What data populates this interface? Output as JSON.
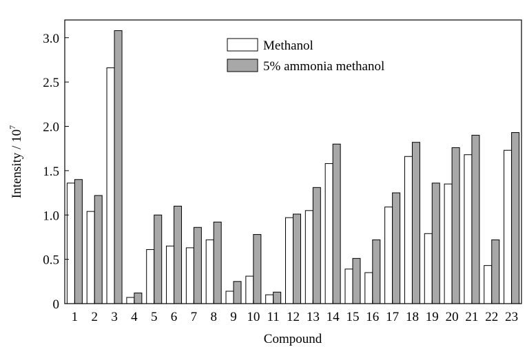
{
  "chart_data": {
    "type": "bar",
    "xlabel": "Compound",
    "ylabel": "Intensity / 10",
    "ylabel_exponent": "7",
    "ylim": [
      0,
      3.2
    ],
    "yticks": [
      "0",
      "0.5",
      "1.0",
      "1.5",
      "2.0",
      "2.5",
      "3.0"
    ],
    "ytick_values": [
      0,
      0.5,
      1.0,
      1.5,
      2.0,
      2.5,
      3.0
    ],
    "categories": [
      "1",
      "2",
      "3",
      "4",
      "5",
      "6",
      "7",
      "8",
      "9",
      "10",
      "11",
      "12",
      "13",
      "14",
      "15",
      "16",
      "17",
      "18",
      "19",
      "20",
      "21",
      "22",
      "23"
    ],
    "legend_position": "top-center",
    "grid": false,
    "series": [
      {
        "name": "Methanol",
        "color": "#ffffff",
        "values": [
          1.36,
          1.04,
          2.66,
          0.07,
          0.61,
          0.65,
          0.63,
          0.72,
          0.14,
          0.31,
          0.1,
          0.97,
          1.05,
          1.58,
          0.39,
          0.35,
          1.09,
          1.66,
          0.79,
          1.35,
          1.68,
          0.43,
          1.73
        ]
      },
      {
        "name": "5% ammonia methanol",
        "color": "#a8a8a8",
        "values": [
          1.4,
          1.22,
          3.08,
          0.12,
          1.0,
          1.1,
          0.86,
          0.92,
          0.25,
          0.78,
          0.13,
          1.01,
          1.31,
          1.8,
          0.51,
          0.72,
          1.25,
          1.82,
          1.36,
          1.76,
          1.9,
          0.72,
          1.93
        ]
      }
    ]
  }
}
